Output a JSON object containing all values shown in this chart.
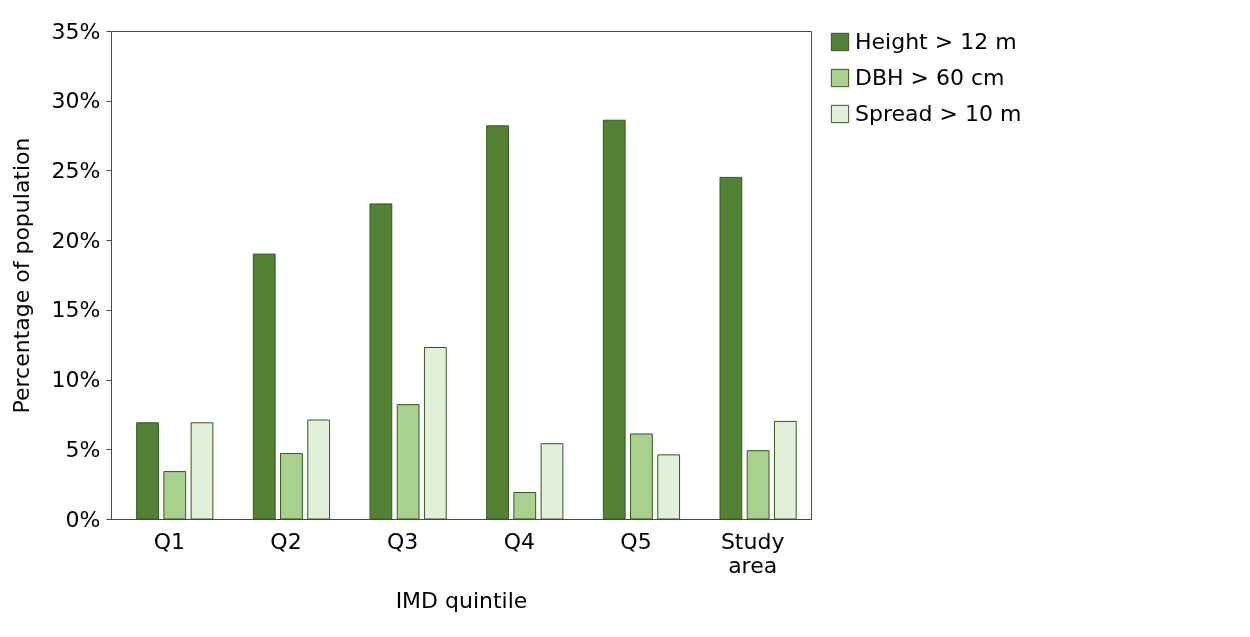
{
  "chart_data": {
    "type": "bar",
    "xlabel": "IMD quintile",
    "ylabel": "Percentage of population",
    "categories": [
      "Q1",
      "Q2",
      "Q3",
      "Q4",
      "Q5",
      "Study area"
    ],
    "series": [
      {
        "name": "Height > 12 m",
        "color": "#548235",
        "values": [
          6.9,
          19.0,
          22.6,
          28.2,
          28.6,
          24.5
        ]
      },
      {
        "name": "DBH > 60 cm",
        "color": "#a9d18e",
        "values": [
          3.4,
          4.7,
          8.2,
          1.9,
          6.1,
          4.9
        ]
      },
      {
        "name": "Spread > 10 m",
        "color": "#e2f0d9",
        "values": [
          6.9,
          7.1,
          12.3,
          5.4,
          4.6,
          7.0
        ]
      }
    ],
    "ylim": [
      0,
      35
    ],
    "yticks": [
      {
        "value": 0,
        "label": "0%"
      },
      {
        "value": 5,
        "label": "5%"
      },
      {
        "value": 10,
        "label": "10%"
      },
      {
        "value": 15,
        "label": "15%"
      },
      {
        "value": 20,
        "label": "20%"
      },
      {
        "value": 25,
        "label": "25%"
      },
      {
        "value": 30,
        "label": "30%"
      },
      {
        "value": 35,
        "label": "35%"
      }
    ],
    "grid": false,
    "legend": "right"
  }
}
